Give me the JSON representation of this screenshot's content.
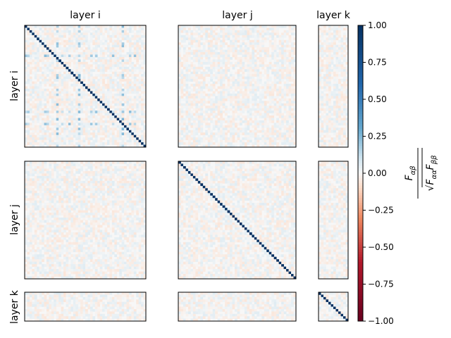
{
  "chart_data": {
    "type": "heatmap",
    "column_titles": [
      "layer i",
      "layer j",
      "layer k"
    ],
    "row_titles": [
      "layer i",
      "layer j",
      "layer k"
    ],
    "blocks": {
      "layer_i": 50,
      "layer_j": 48,
      "layer_k": 12
    },
    "diagonal_blocks_values": "identity (diagonal = 1.0), off-diagonal ≈ 0",
    "off_diagonal_noise": 0.06,
    "structured_rows_layer_i": [
      12,
      35,
      40
    ],
    "structured_cols_layer_i": [
      13,
      22,
      40
    ],
    "structured_strength": 0.22,
    "colormap": "RdBu",
    "colormap_endpoints": {
      "low": "#67001f",
      "mid": "#f7f7f7",
      "high": "#053061"
    },
    "colorbar": {
      "vmin": -1.0,
      "vmax": 1.0,
      "ticks": [
        "1.00",
        "0.75",
        "0.50",
        "0.25",
        "0.00",
        "−0.25",
        "−0.50",
        "−0.75",
        "−1.00"
      ],
      "tick_values": [
        1.0,
        0.75,
        0.5,
        0.25,
        0.0,
        -0.25,
        -0.5,
        -0.75,
        -1.0
      ],
      "label": "F_αβ / √(F_αα F_ββ)"
    }
  }
}
